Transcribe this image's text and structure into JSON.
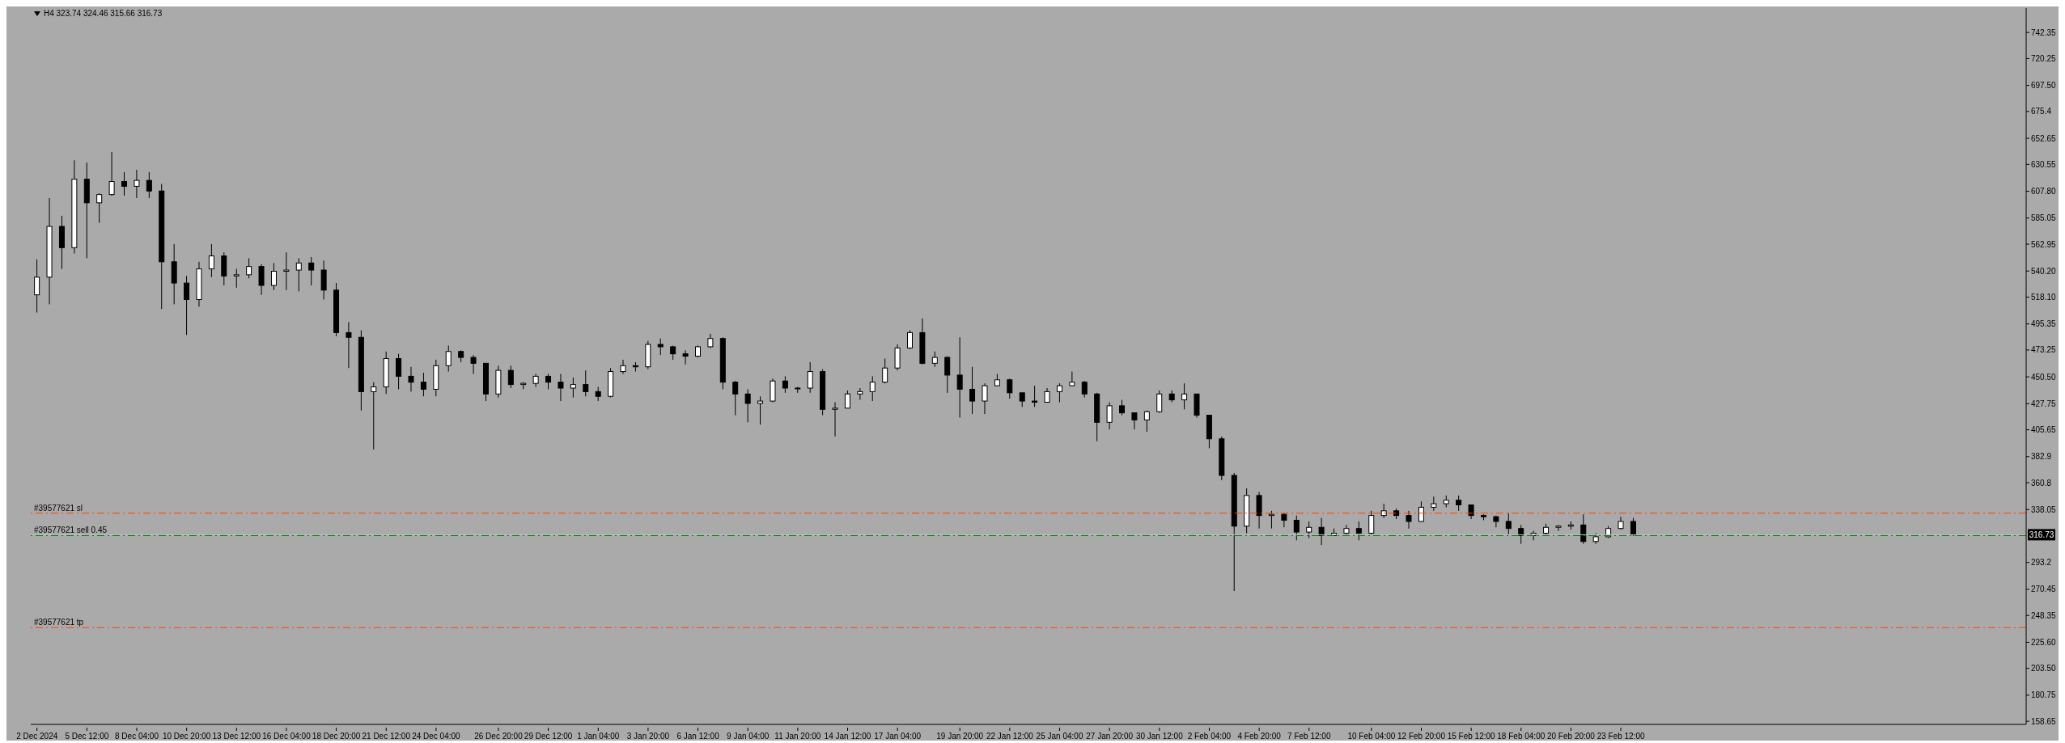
{
  "chart_data": {
    "type": "candlestick",
    "title": "H4 323.74 324.46 315.66 316.73",
    "color": "#000000",
    "categories": [
      "2 Dec 2024",
      null,
      null,
      null,
      "5 Dec 12:00",
      null,
      null,
      null,
      "8 Dec 04:00",
      null,
      null,
      null,
      "10 Dec 20:00",
      null,
      null,
      null,
      "13 Dec 12:00",
      null,
      null,
      null,
      "16 Dec 04:00",
      null,
      null,
      null,
      "18 Dec 20:00",
      null,
      null,
      null,
      "21 Dec 12:00",
      null,
      null,
      null,
      "24 Dec 04:00",
      null,
      null,
      null,
      null,
      "26 Dec 20:00",
      null,
      null,
      null,
      "29 Dec 12:00",
      null,
      null,
      null,
      "1 Jan 04:00",
      null,
      null,
      null,
      "3 Jan 20:00",
      null,
      null,
      null,
      "6 Jan 12:00",
      null,
      null,
      null,
      "9 Jan 04:00",
      null,
      null,
      null,
      "11 Jan 20:00",
      null,
      null,
      null,
      "14 Jan 12:00",
      null,
      null,
      null,
      "17 Jan 04:00",
      null,
      null,
      null,
      null,
      "19 Jan 20:00",
      null,
      null,
      null,
      "22 Jan 12:00",
      null,
      null,
      null,
      "25 Jan 04:00",
      null,
      null,
      null,
      "27 Jan 20:00",
      null,
      null,
      null,
      "30 Jan 12:00",
      null,
      null,
      null,
      "2 Feb 04:00",
      null,
      null,
      null,
      "4 Feb 20:00",
      null,
      null,
      null,
      "7 Feb 12:00",
      null,
      null,
      null,
      null,
      "10 Feb 04:00",
      null,
      null,
      null,
      "12 Feb 20:00",
      null,
      null,
      null,
      "15 Feb 12:00",
      null,
      null,
      null,
      "18 Feb 04:00",
      null,
      null,
      null,
      "20 Feb 20:00",
      null,
      null,
      null,
      "23 Feb 12:00",
      null,
      null,
      null,
      null,
      null,
      null,
      null,
      null,
      null,
      null,
      null,
      null,
      null,
      null,
      null,
      null,
      null,
      null,
      null,
      null,
      null,
      null,
      null,
      null,
      null,
      null,
      null,
      null,
      null,
      null,
      null,
      null
    ],
    "ohlc": [
      [
        520,
        550,
        505,
        535
      ],
      [
        535,
        602,
        512,
        578
      ],
      [
        578,
        587,
        542,
        560
      ],
      [
        560,
        634,
        555,
        618
      ],
      [
        618,
        632,
        551,
        598
      ],
      [
        598,
        606,
        581,
        605
      ],
      [
        605,
        641,
        604,
        616
      ],
      [
        616,
        624,
        604,
        612
      ],
      [
        612,
        626,
        602,
        617
      ],
      [
        617,
        624,
        602,
        608
      ],
      [
        608,
        614,
        508,
        548
      ],
      [
        548,
        563,
        512,
        530
      ],
      [
        530,
        536,
        486,
        516
      ],
      [
        516,
        548,
        510,
        542
      ],
      [
        542,
        563,
        535,
        553
      ],
      [
        553,
        556,
        528,
        536
      ],
      [
        536,
        542,
        526,
        537
      ],
      [
        537,
        551,
        534,
        544
      ],
      [
        544,
        546,
        520,
        528
      ],
      [
        528,
        547,
        524,
        540
      ],
      [
        540,
        556,
        524,
        541
      ],
      [
        541,
        551,
        523,
        547
      ],
      [
        547,
        552,
        528,
        541
      ],
      [
        541,
        549,
        516,
        524
      ],
      [
        524,
        530,
        485,
        488
      ],
      [
        488,
        497,
        458,
        484
      ],
      [
        484,
        490,
        422,
        438
      ],
      [
        438,
        446,
        389,
        442
      ],
      [
        442,
        472,
        436,
        466
      ],
      [
        466,
        470,
        440,
        451
      ],
      [
        451,
        459,
        438,
        446
      ],
      [
        446,
        454,
        434,
        440
      ],
      [
        440,
        465,
        434,
        460
      ],
      [
        460,
        477,
        455,
        472
      ],
      [
        472,
        473,
        463,
        467
      ],
      [
        467,
        469,
        453,
        462
      ],
      [
        462,
        462,
        430,
        436
      ],
      [
        436,
        460,
        433,
        456
      ],
      [
        456,
        460,
        441,
        444
      ],
      [
        444,
        446,
        440,
        445
      ],
      [
        445,
        453,
        442,
        451
      ],
      [
        451,
        453,
        440,
        446
      ],
      [
        446,
        453,
        430,
        441
      ],
      [
        441,
        450,
        433,
        444
      ],
      [
        444,
        456,
        434,
        438
      ],
      [
        438,
        442,
        430,
        434
      ],
      [
        434,
        458,
        433,
        455
      ],
      [
        455,
        465,
        453,
        460
      ],
      [
        460,
        463,
        455,
        459
      ],
      [
        459,
        481,
        457,
        478
      ],
      [
        478,
        483,
        469,
        476
      ],
      [
        476,
        477,
        465,
        470
      ],
      [
        470,
        473,
        461,
        468
      ],
      [
        468,
        477,
        467,
        476
      ],
      [
        476,
        487,
        475,
        483
      ],
      [
        483,
        484,
        440,
        446
      ],
      [
        446,
        447,
        418,
        436
      ],
      [
        436,
        440,
        412,
        428
      ],
      [
        428,
        434,
        410,
        430
      ],
      [
        430,
        449,
        429,
        447
      ],
      [
        447,
        451,
        437,
        441
      ],
      [
        441,
        442,
        437,
        441
      ],
      [
        441,
        463,
        437,
        455
      ],
      [
        455,
        457,
        418,
        423
      ],
      [
        423,
        429,
        400,
        424
      ],
      [
        424,
        439,
        424,
        436
      ],
      [
        436,
        441,
        431,
        438
      ],
      [
        438,
        451,
        430,
        446
      ],
      [
        446,
        466,
        445,
        458
      ],
      [
        458,
        478,
        456,
        475
      ],
      [
        475,
        490,
        474,
        488
      ],
      [
        488,
        500,
        461,
        462
      ],
      [
        462,
        472,
        459,
        467
      ],
      [
        467,
        468,
        437,
        452
      ],
      [
        452,
        484,
        416,
        440
      ],
      [
        440,
        459,
        419,
        430
      ],
      [
        430,
        445,
        419,
        443
      ],
      [
        443,
        453,
        443,
        448
      ],
      [
        448,
        449,
        432,
        437
      ],
      [
        437,
        437,
        425,
        430
      ],
      [
        430,
        443,
        425,
        429
      ],
      [
        429,
        441,
        429,
        438
      ],
      [
        438,
        445,
        429,
        443
      ],
      [
        443,
        455,
        443,
        446
      ],
      [
        446,
        447,
        433,
        436
      ],
      [
        436,
        437,
        396,
        412
      ],
      [
        412,
        429,
        406,
        426
      ],
      [
        426,
        431,
        418,
        420
      ],
      [
        420,
        420,
        406,
        414
      ],
      [
        414,
        422,
        404,
        421
      ],
      [
        421,
        439,
        420,
        436
      ],
      [
        436,
        439,
        429,
        431
      ],
      [
        431,
        445,
        423,
        436
      ],
      [
        436,
        436,
        416,
        418
      ],
      [
        418,
        418,
        390,
        398
      ],
      [
        398,
        400,
        363,
        367
      ],
      [
        367,
        369,
        269,
        324
      ],
      [
        324,
        356,
        318,
        350
      ],
      [
        350,
        353,
        322,
        333
      ],
      [
        333,
        337,
        322,
        334
      ],
      [
        334,
        335,
        323,
        329
      ],
      [
        329,
        333,
        312,
        319
      ],
      [
        319,
        328,
        314,
        323
      ],
      [
        323,
        331,
        308,
        316
      ],
      [
        316,
        322,
        316,
        318
      ],
      [
        318,
        325,
        317,
        322
      ],
      [
        322,
        328,
        312,
        318
      ],
      [
        318,
        337,
        317,
        333
      ],
      [
        333,
        343,
        331,
        337
      ],
      [
        337,
        339,
        330,
        333
      ],
      [
        333,
        337,
        322,
        328
      ],
      [
        328,
        345,
        328,
        340
      ],
      [
        340,
        349,
        337,
        343
      ],
      [
        343,
        350,
        340,
        346
      ],
      [
        346,
        350,
        337,
        342
      ],
      [
        342,
        342,
        330,
        333
      ],
      [
        333,
        334,
        329,
        332
      ],
      [
        332,
        333,
        323,
        328
      ],
      [
        328,
        335,
        317,
        322
      ],
      [
        322,
        325,
        309,
        316
      ],
      [
        316,
        320,
        312,
        318
      ],
      [
        318,
        326,
        317,
        323
      ],
      [
        323,
        325,
        320,
        324
      ],
      [
        324,
        328,
        321,
        325
      ],
      [
        325,
        334,
        309,
        311
      ],
      [
        311,
        318,
        309,
        315
      ],
      [
        315,
        324,
        314,
        322
      ],
      [
        322,
        332,
        321,
        328
      ],
      [
        328,
        331,
        315.66,
        316.73
      ],
      null,
      null,
      null,
      null,
      null,
      null,
      null,
      null,
      null,
      null,
      null,
      null,
      null,
      null,
      null,
      null,
      null,
      null,
      null,
      null,
      null,
      null,
      null,
      null,
      null,
      null,
      null,
      null,
      null,
      null,
      null
    ],
    "ylim": [
      156,
      763
    ],
    "yticks": [
      158.65,
      180.75,
      {
        "value": 203.5,
        "label": "203.50"
      },
      {
        "value": 225.6,
        "label": "225.60"
      },
      248.35,
      270.45,
      293.2,
      338.05,
      360.8,
      382.9,
      405.65,
      427.75,
      {
        "value": 450.5,
        "label": "450.50"
      },
      473.25,
      495.35,
      {
        "value": 518.1,
        "label": "518.10"
      },
      {
        "value": 540.2,
        "label": "540.20"
      },
      562.95,
      585.05,
      {
        "value": 607.8,
        "label": "607.80"
      },
      630.55,
      652.65,
      675.4,
      {
        "value": 697.5,
        "label": "697.50"
      },
      720.25,
      742.35
    ],
    "ref_lines": [
      {
        "axis": "y",
        "value": 335,
        "label": "#39577621 sl",
        "color": "#ff4500",
        "line_style": "dashed"
      },
      {
        "axis": "y",
        "value": 316.73,
        "label": "316.73",
        "color": "#c0c0c0",
        "line_style": "solid"
      },
      {
        "axis": "y",
        "value": 316,
        "label": "#39577621 sell 0.45",
        "color": "#008000",
        "line_style": "dashed"
      },
      {
        "axis": "y",
        "value": 238,
        "label": "#39577621 tp",
        "color": "#ff4500",
        "line_style": "dashed"
      }
    ]
  }
}
